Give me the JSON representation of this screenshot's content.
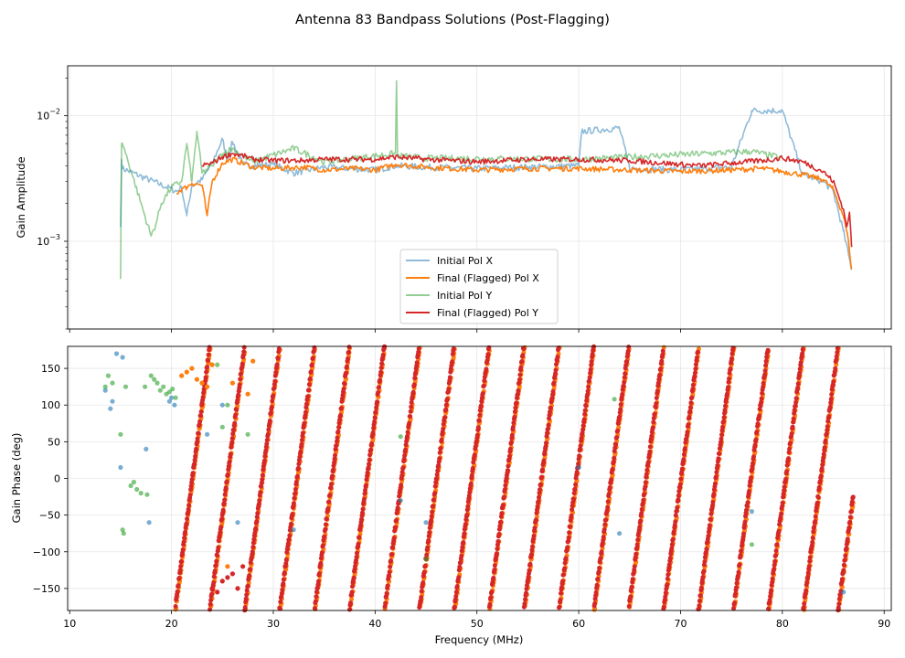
{
  "title": "Antenna 83 Bandpass Solutions (Post-Flagging)",
  "colors": {
    "initial_x": "#1f77b4",
    "final_x": "#ff7f0e",
    "initial_y": "#2ca02c",
    "final_y": "#d62728",
    "grid": "#e6e6e6"
  },
  "chart_data": [
    {
      "type": "line",
      "panel": "amplitude",
      "ylabel": "Gain Amplitude",
      "yscale": "log",
      "xlim": [
        9.8,
        90.7
      ],
      "ylim": [
        0.0002,
        0.025
      ],
      "yticks": [
        {
          "value": 0.001,
          "base": "10",
          "exp": "−3"
        },
        {
          "value": 0.01,
          "base": "10",
          "exp": "−2"
        }
      ],
      "legend": {
        "location": "lower-center",
        "entries": [
          "Initial Pol X",
          "Final (Flagged) Pol X",
          "Initial Pol Y",
          "Final (Flagged) Pol Y"
        ]
      },
      "series": [
        {
          "name": "Initial Pol X",
          "color_key": "initial_x",
          "x": [
            15.0,
            15.1,
            15.2,
            20.5,
            21.0,
            21.5,
            22.0,
            23.0,
            24.0,
            25.0,
            25.5,
            26.0,
            27.0,
            28.0,
            30.0,
            32.0,
            35.0,
            40.0,
            42.0,
            45.0,
            50.0,
            55.0,
            60.0,
            60.3,
            64.0,
            65.0,
            70.0,
            75.0,
            77.0,
            80.0,
            82.0,
            84.0,
            85.0,
            86.0,
            86.8
          ],
          "y": [
            0.0013,
            0.0045,
            0.0038,
            0.0025,
            0.0027,
            0.0016,
            0.0028,
            0.0031,
            0.0042,
            0.0065,
            0.0045,
            0.0062,
            0.0041,
            0.004,
            0.0041,
            0.0035,
            0.0039,
            0.0037,
            0.004,
            0.0039,
            0.0038,
            0.0039,
            0.004,
            0.0075,
            0.008,
            0.0038,
            0.0037,
            0.0039,
            0.011,
            0.011,
            0.0034,
            0.003,
            0.0025,
            0.0012,
            0.0006
          ]
        },
        {
          "name": "Final (Flagged) Pol X",
          "color_key": "final_x",
          "x": [
            20.5,
            21.0,
            21.5,
            22.0,
            23.0,
            23.5,
            24.0,
            25.0,
            26.0,
            27.0,
            28.0,
            30.0,
            33.0,
            35.0,
            38.0,
            40.0,
            42.0,
            45.0,
            50.0,
            55.0,
            60.0,
            65.0,
            70.0,
            75.0,
            78.0,
            80.0,
            82.0,
            84.0,
            85.0,
            86.0,
            86.5,
            86.8
          ],
          "y": [
            0.0024,
            0.0026,
            0.0027,
            0.0029,
            0.0028,
            0.0016,
            0.003,
            0.0042,
            0.0045,
            0.0042,
            0.0039,
            0.0038,
            0.0039,
            0.0037,
            0.0038,
            0.0037,
            0.0041,
            0.0039,
            0.0037,
            0.0038,
            0.0038,
            0.0037,
            0.0036,
            0.0037,
            0.0038,
            0.0036,
            0.0034,
            0.0031,
            0.0026,
            0.0016,
            0.001,
            0.0006
          ]
        },
        {
          "name": "Initial Pol Y",
          "color_key": "initial_y",
          "x": [
            15.0,
            15.1,
            15.2,
            18.0,
            18.5,
            19.0,
            20.0,
            21.0,
            21.5,
            22.0,
            22.5,
            23.0,
            24.0,
            25.0,
            26.0,
            27.0,
            28.0,
            32.0,
            35.0,
            42.0,
            42.1,
            42.2,
            45.0,
            60.0,
            77.0,
            80.0
          ],
          "y": [
            0.0005,
            0.0058,
            0.006,
            0.0011,
            0.0014,
            0.002,
            0.0027,
            0.003,
            0.006,
            0.003,
            0.0075,
            0.0035,
            0.004,
            0.005,
            0.0055,
            0.0048,
            0.0043,
            0.0055,
            0.0043,
            0.005,
            0.019,
            0.0048,
            0.0046,
            0.0045,
            0.0052,
            0.0046
          ]
        },
        {
          "name": "Final (Flagged) Pol Y",
          "color_key": "final_y",
          "x": [
            23.0,
            24.0,
            25.0,
            26.0,
            27.0,
            28.0,
            30.0,
            33.0,
            35.0,
            38.0,
            40.0,
            42.0,
            45.0,
            50.0,
            55.0,
            60.0,
            65.0,
            70.0,
            72.0,
            75.0,
            78.0,
            80.0,
            82.0,
            84.0,
            85.0,
            86.0,
            86.3,
            86.6,
            86.8
          ],
          "y": [
            0.004,
            0.0042,
            0.0047,
            0.005,
            0.0048,
            0.0045,
            0.0044,
            0.0044,
            0.0045,
            0.0045,
            0.0045,
            0.0047,
            0.0045,
            0.0043,
            0.0045,
            0.0045,
            0.0044,
            0.0041,
            0.004,
            0.0042,
            0.0044,
            0.0046,
            0.0043,
            0.0036,
            0.003,
            0.0018,
            0.0013,
            0.0017,
            0.0009
          ]
        }
      ]
    },
    {
      "type": "scatter",
      "panel": "phase",
      "xlabel": "Frequency (MHz)",
      "ylabel": "Gain Phase (deg)",
      "xlim": [
        9.8,
        90.7
      ],
      "ylim": [
        -180,
        180
      ],
      "xticks": [
        10,
        20,
        30,
        40,
        50,
        60,
        70,
        80,
        90
      ],
      "yticks": [
        -150,
        -100,
        -50,
        0,
        50,
        100,
        150
      ],
      "phase_wrap": {
        "description": "Final-solution phases follow a linear delay slope, wrapping every 360 degrees",
        "x_start": 20.4,
        "x_end": 87.0,
        "slope_deg_per_mhz": 105,
        "phase_at_x_start": -180
      },
      "series": [
        {
          "name": "Initial Pol X",
          "color_key": "initial_x",
          "x": [
            13.5,
            14.0,
            14.2,
            14.6,
            15.0,
            15.2,
            17.5,
            17.8,
            19.8,
            20.0,
            20.3,
            23.5,
            25.0,
            26.5,
            32.0,
            42.5,
            45.0,
            60.0,
            64.0,
            77.0,
            86.0
          ],
          "y": [
            120,
            95,
            105,
            170,
            15,
            165,
            40,
            -60,
            105,
            110,
            100,
            60,
            100,
            -60,
            -70,
            -30,
            -60,
            15,
            -75,
            -45,
            -155
          ]
        },
        {
          "name": "Final (Flagged) Pol X",
          "color_key": "final_x",
          "x": [
            21.0,
            21.5,
            22.0,
            22.5,
            23.0,
            23.5,
            24.0,
            25.5,
            26.0,
            27.5,
            28.0
          ],
          "y": [
            140,
            145,
            150,
            135,
            130,
            125,
            155,
            -120,
            130,
            115,
            160
          ]
        },
        {
          "name": "Initial Pol Y",
          "color_key": "initial_y",
          "x": [
            13.5,
            13.8,
            14.2,
            15.0,
            15.2,
            15.3,
            15.5,
            16.0,
            16.3,
            16.6,
            17.0,
            17.4,
            17.6,
            18.0,
            18.3,
            18.6,
            18.9,
            19.2,
            19.5,
            19.8,
            20.1,
            20.4,
            24.5,
            25.0,
            25.5,
            27.5,
            42.5,
            45.0,
            63.5,
            77.0
          ],
          "y": [
            125,
            140,
            130,
            60,
            -70,
            -75,
            125,
            -10,
            -5,
            -15,
            -20,
            125,
            -22,
            140,
            135,
            130,
            120,
            125,
            115,
            118,
            122,
            110,
            155,
            70,
            100,
            60,
            57,
            -110,
            108,
            -90
          ]
        },
        {
          "name": "Final (Flagged) Pol Y",
          "color_key": "final_y",
          "x": [
            24.0,
            24.5,
            25.0,
            25.5,
            26.0,
            26.5,
            27.0
          ],
          "y": [
            -150,
            -155,
            -140,
            -135,
            -130,
            -150,
            -120
          ]
        }
      ]
    }
  ]
}
